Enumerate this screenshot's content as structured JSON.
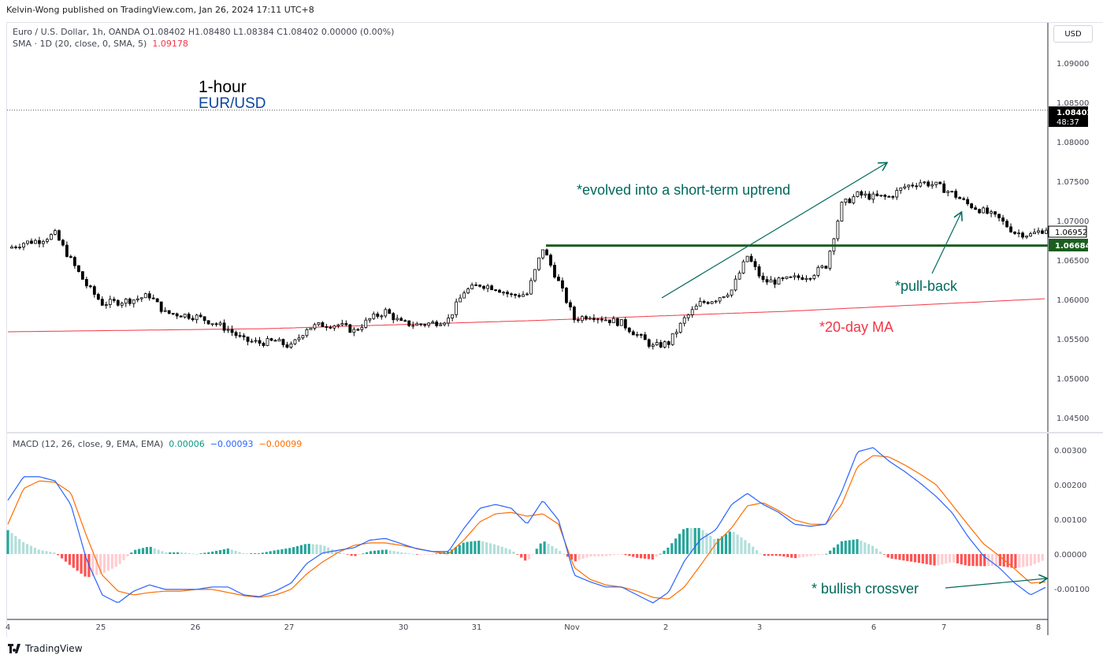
{
  "publisher": "Kelvin-Wong published on TradingView.com, Jan 26, 2024 17:11 UTC+8",
  "symbol_legend": {
    "text": "Euro / U.S. Dollar, 1h, OANDA  O1.08402  H1.08480  L1.08384  C1.08402  0.00000 (0.00%)",
    "sma_label": "SMA · 1D (20, close, 0, SMA, 5)",
    "sma_value": "1.09178"
  },
  "macd_legend": {
    "label": "MACD (12, 26, close, 9, EMA, EMA)",
    "hist": "0.00006",
    "macd": "−0.00093",
    "signal": "−0.00099"
  },
  "currency_button": "USD",
  "annotations": {
    "timeframe": "1-hour",
    "pair": "EUR/USD",
    "uptrend": "*evolved into a short-term uptrend",
    "pullback": "*pull-back",
    "ma": "*20-day MA",
    "crossover": "* bullish crossver"
  },
  "price_badges": {
    "last": "1.08402",
    "countdown": "48:37",
    "level1": "1.06952",
    "level2": "1.06684"
  },
  "footer_logo": "TradingView",
  "colors": {
    "up": "#ffffff",
    "down": "#000000",
    "sma": "#f23645",
    "support": "#1b5e20",
    "annotation": "#00695c",
    "macd": "#2962ff",
    "signal": "#ff6d00",
    "hist_up_strong": "#26a69a",
    "hist_up_weak": "#b2dfdb",
    "hist_dn_strong": "#ff5252",
    "hist_dn_weak": "#ffcdd2",
    "ma_text": "#f23645",
    "pair_text": "#0d47a1"
  },
  "chart_data": [
    {
      "type": "candlestick",
      "x_ticks": [
        "4",
        "25",
        "26",
        "27",
        "30",
        "31",
        "Nov",
        "2",
        "3",
        "6",
        "7",
        "8"
      ],
      "y_ticks": [
        "1.09000",
        "1.08500",
        "1.08000",
        "1.07500",
        "1.07000",
        "1.06500",
        "1.06000",
        "1.05500",
        "1.05000",
        "1.04500"
      ],
      "ylim": [
        1.0435,
        1.0935
      ],
      "last_price": 1.08402,
      "support_level": 1.06684,
      "closes": [
        1.0665,
        1.0672,
        1.0675,
        1.0683,
        1.065,
        1.0618,
        1.0595,
        1.0597,
        1.06,
        1.0605,
        1.0583,
        1.0581,
        1.0578,
        1.0571,
        1.0562,
        1.0548,
        1.0545,
        1.0547,
        1.054,
        1.0564,
        1.0568,
        1.0568,
        1.056,
        1.0575,
        1.0585,
        1.057,
        1.0568,
        1.057,
        1.0575,
        1.061,
        1.0619,
        1.0615,
        1.0605,
        1.0607,
        1.0665,
        1.0622,
        1.0575,
        1.058,
        1.0575,
        1.057,
        1.0555,
        1.054,
        1.0545,
        1.0575,
        1.0595,
        1.0601,
        1.0612,
        1.0655,
        1.0623,
        1.0623,
        1.0627,
        1.0631,
        1.0643,
        1.072,
        1.0733,
        1.073,
        1.073,
        1.0743,
        1.0749,
        1.0745,
        1.0735,
        1.0721,
        1.0712,
        1.0702,
        1.0685,
        1.0682,
        1.069
      ],
      "sma_20d": [
        1.0559,
        1.0563,
        1.0573,
        1.0585,
        1.0601
      ]
    },
    {
      "type": "macd",
      "y_ticks": [
        "0.00300",
        "0.00200",
        "0.00100",
        "0.00000",
        "-0.00100"
      ],
      "ylim": [
        -0.0018,
        0.0033
      ],
      "macd": [
        0.00155,
        0.00223,
        0.00223,
        0.00211,
        0.00143,
        -0.00016,
        -0.00118,
        -0.00141,
        -0.00107,
        -0.00089,
        -0.00102,
        -0.00102,
        -0.00102,
        -0.00095,
        -0.00095,
        -0.00118,
        -0.00123,
        -0.00107,
        -0.00084,
        -0.00027,
        3e-05,
        0.00011,
        0.00018,
        0.0004,
        0.00045,
        0.0003,
        0.00015,
        7e-05,
        7e-05,
        0.00075,
        0.00132,
        0.00143,
        0.00132,
        0.00086,
        0.00155,
        0.00098,
        -0.00061,
        -0.0008,
        -0.00095,
        -0.00095,
        -0.00118,
        -0.00141,
        -0.0011,
        -0.0002,
        0.00041,
        0.0007,
        0.00143,
        0.00175,
        0.00143,
        0.0012,
        0.00086,
        0.0008,
        0.00086,
        0.0018,
        0.00295,
        0.00307,
        0.00268,
        0.00238,
        0.00204,
        0.00166,
        0.0012,
        0.00052,
        -5e-05,
        -0.00039,
        -0.00084,
        -0.00118,
        -0.00095
      ],
      "signal": [
        0.00086,
        0.00189,
        0.00211,
        0.00207,
        0.00177,
        0.00052,
        -0.00061,
        -0.00107,
        -0.00118,
        -0.00111,
        -0.00107,
        -0.00107,
        -0.00102,
        -0.00102,
        -0.00111,
        -0.0012,
        -0.00125,
        -0.00118,
        -0.00102,
        -0.00057,
        -0.00023,
        5e-05,
        0.00025,
        0.00032,
        0.00032,
        0.00025,
        0.00016,
        7e-05,
        0,
        0.00041,
        0.00093,
        0.00116,
        0.0012,
        0.00109,
        0.00116,
        0.00086,
        -0.00039,
        -0.00073,
        -0.00089,
        -0.00095,
        -0.00107,
        -0.00125,
        -0.0013,
        -0.00095,
        -0.00034,
        0.0003,
        0.00075,
        0.00139,
        0.00148,
        0.00125,
        0.00098,
        0.00086,
        0.00086,
        0.00143,
        0.00252,
        0.00284,
        0.0028,
        0.00257,
        0.0023,
        0.002,
        0.00143,
        0.00086,
        0.0003,
        -5e-05,
        -0.00043,
        -0.00084,
        -0.0008
      ]
    }
  ]
}
